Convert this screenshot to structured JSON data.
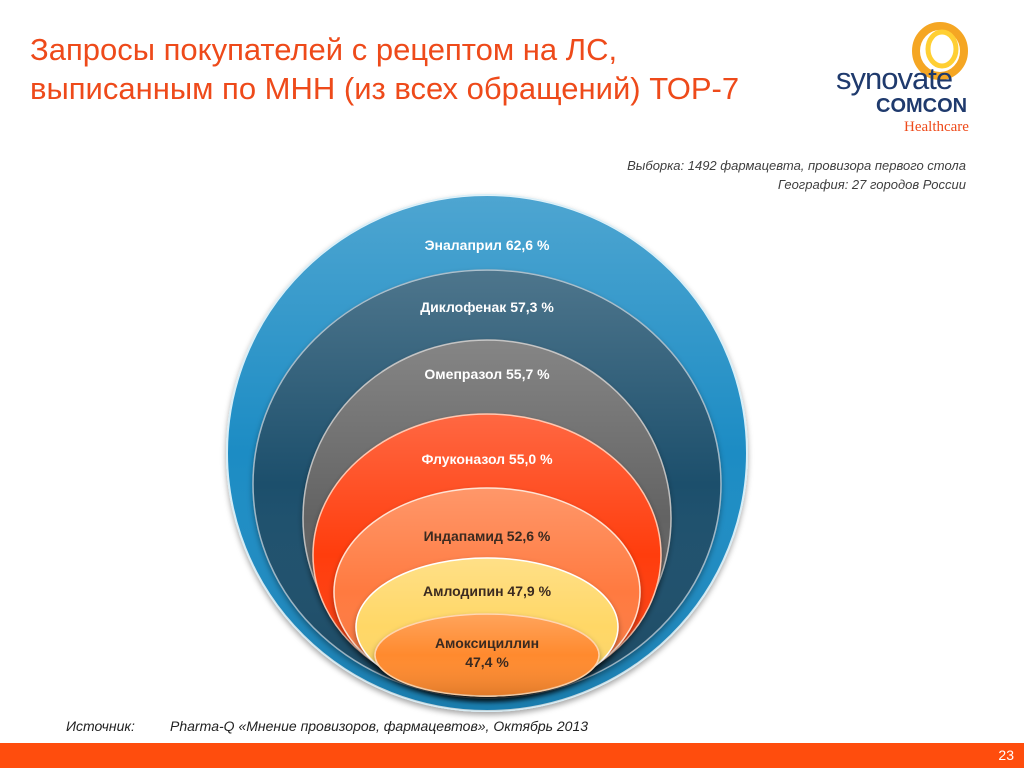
{
  "slide": {
    "title_line1": "Запросы покупателей с рецептом на ЛС,",
    "title_line2": "выписанным по МНН (из всех обращений) ТОР-7",
    "sample": "Выборка: 1492 фармацевта, провизора первого стола",
    "geography": "География: 27 городов России",
    "source_label": "Источник:",
    "source_text": "Pharma-Q «Мнение провизоров, фармацевтов», Октябрь 2013",
    "page_number": "23"
  },
  "logo": {
    "line1": "synovate",
    "line2": "COMCON",
    "line3": "Healthcare"
  },
  "colors": {
    "title": "#ee4a1a",
    "footer": "#ff4d0d",
    "logo_navy": "#1f3a6d",
    "logo_ring_outer": "#f5a623",
    "logo_ring_inner": "#ffcf33"
  },
  "rings": [
    {
      "label": "Эналаприл 62,6 %",
      "name": "Эналаприл",
      "value": 62.6,
      "fill": "#1f8cc4",
      "text_color": "#ffffff"
    },
    {
      "label": "Диклофенак 57,3 %",
      "name": "Диклофенак",
      "value": 57.3,
      "fill": "#1c4f6c",
      "text_color": "#ffffff"
    },
    {
      "label": "Омепразол 55,7 %",
      "name": "Омепразол",
      "value": 55.7,
      "fill": "#646464",
      "text_color": "#ffffff"
    },
    {
      "label": "Флуконазол 55,0 %",
      "name": "Флуконазол",
      "value": 55.0,
      "fill": "#ff3d0a",
      "text_color": "#ffffff"
    },
    {
      "label": "Индапамид 52,6 %",
      "name": "Индапамид",
      "value": 52.6,
      "fill": "#ff7a3f",
      "text_color": "#3b2a20"
    },
    {
      "label": "Амлодипин 47,9 %",
      "name": "Амлодипин",
      "value": 47.9,
      "fill": "#ffd766",
      "text_color": "#3b2a20"
    },
    {
      "label": "Амоксициллин 47,4 %",
      "label_line1": "Амоксициллин",
      "label_line2": "47,4 %",
      "name": "Амоксициллин",
      "value": 47.4,
      "fill": "#ff8a2f",
      "text_color": "#3b2a20"
    }
  ]
}
